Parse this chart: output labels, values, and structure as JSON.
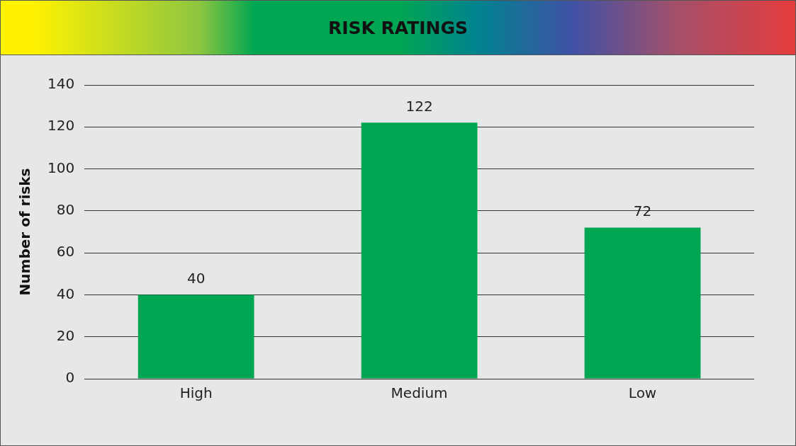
{
  "chart_data": {
    "type": "bar",
    "title": "RISK RATINGS",
    "ylabel": "Number of risks",
    "categories": [
      "High",
      "Medium",
      "Low"
    ],
    "values": [
      40,
      122,
      72
    ],
    "color": "#00a651",
    "ylim": [
      0,
      140
    ],
    "yticks": [
      0,
      20,
      40,
      60,
      80,
      100,
      120,
      140
    ],
    "grid": "y",
    "data_labels": true,
    "legend": false
  }
}
